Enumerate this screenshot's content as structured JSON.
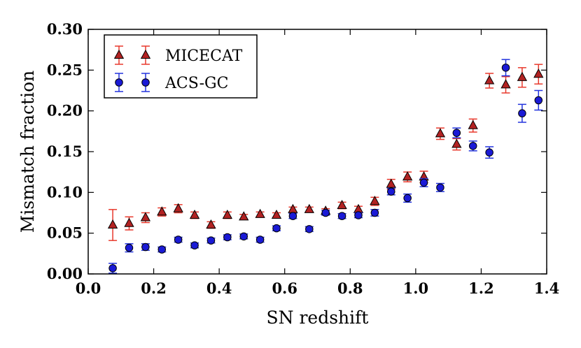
{
  "chart_data": {
    "type": "scatter",
    "title": "",
    "xlabel": "SN redshift",
    "ylabel": "Mismatch fraction",
    "xlim": [
      0.0,
      1.4
    ],
    "ylim": [
      0.0,
      0.3
    ],
    "xticks": [
      0.0,
      0.2,
      0.4,
      0.6,
      0.8,
      1.0,
      1.2,
      1.4
    ],
    "xtick_labels": [
      "0.0",
      "0.2",
      "0.4",
      "0.6",
      "0.8",
      "1.0",
      "1.2",
      "1.4"
    ],
    "yticks": [
      0.0,
      0.05,
      0.1,
      0.15,
      0.2,
      0.25,
      0.3
    ],
    "ytick_labels": [
      "0.00",
      "0.05",
      "0.10",
      "0.15",
      "0.20",
      "0.25",
      "0.30"
    ],
    "grid": false,
    "legend_position": "top-left",
    "series": [
      {
        "name": "MICECAT",
        "marker": "triangle",
        "color": "#b22222",
        "errcolor": "#e8392c",
        "x": [
          0.075,
          0.125,
          0.175,
          0.225,
          0.275,
          0.325,
          0.375,
          0.425,
          0.475,
          0.525,
          0.575,
          0.625,
          0.675,
          0.725,
          0.775,
          0.825,
          0.875,
          0.925,
          0.975,
          1.025,
          1.075,
          1.125,
          1.175,
          1.225,
          1.275,
          1.325,
          1.375
        ],
        "y": [
          0.06,
          0.062,
          0.069,
          0.076,
          0.08,
          0.072,
          0.06,
          0.072,
          0.07,
          0.073,
          0.072,
          0.079,
          0.079,
          0.077,
          0.084,
          0.079,
          0.089,
          0.11,
          0.119,
          0.119,
          0.172,
          0.159,
          0.182,
          0.237,
          0.232,
          0.241,
          0.245
        ],
        "err": [
          0.019,
          0.008,
          0.006,
          0.005,
          0.005,
          0.004,
          0.004,
          0.004,
          0.003,
          0.003,
          0.003,
          0.003,
          0.003,
          0.003,
          0.004,
          0.004,
          0.005,
          0.006,
          0.006,
          0.007,
          0.007,
          0.007,
          0.008,
          0.009,
          0.01,
          0.012,
          0.012
        ]
      },
      {
        "name": "ACS-GC",
        "marker": "circle",
        "color": "#1a1ad6",
        "errcolor": "#2233dd",
        "x": [
          0.075,
          0.125,
          0.175,
          0.225,
          0.275,
          0.325,
          0.375,
          0.425,
          0.475,
          0.525,
          0.575,
          0.625,
          0.675,
          0.725,
          0.775,
          0.825,
          0.875,
          0.925,
          0.975,
          1.025,
          1.075,
          1.125,
          1.175,
          1.225,
          1.275,
          1.325,
          1.375
        ],
        "y": [
          0.007,
          0.032,
          0.033,
          0.03,
          0.042,
          0.035,
          0.041,
          0.045,
          0.046,
          0.042,
          0.056,
          0.071,
          0.055,
          0.075,
          0.071,
          0.072,
          0.075,
          0.101,
          0.093,
          0.112,
          0.106,
          0.173,
          0.157,
          0.149,
          0.253,
          0.197,
          0.213
        ],
        "err": [
          0.006,
          0.005,
          0.004,
          0.003,
          0.003,
          0.003,
          0.003,
          0.003,
          0.003,
          0.003,
          0.003,
          0.003,
          0.003,
          0.003,
          0.003,
          0.003,
          0.004,
          0.004,
          0.005,
          0.005,
          0.005,
          0.006,
          0.006,
          0.007,
          0.01,
          0.011,
          0.012
        ]
      }
    ]
  }
}
